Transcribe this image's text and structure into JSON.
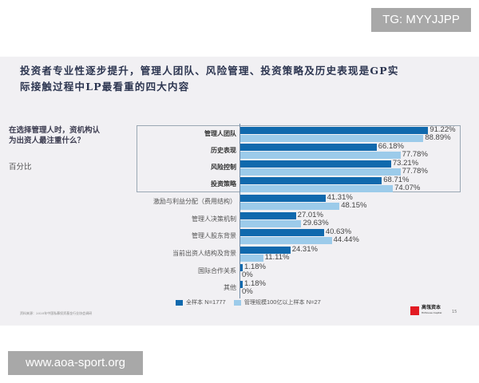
{
  "watermarks": {
    "top": "TG: MYYJJPP",
    "bottom": "www.aoa-sport.org"
  },
  "slide": {
    "title_line1": "投资者专业性逐步提升，管理人团队、风险管理、投资策略及历史表现是GP实",
    "title_line2": "际接触过程中LP最看重的四大内容",
    "question": "在选择管理人时，资机构认为出资人最注重什么？",
    "unit": "百分比",
    "source": "资料来源：2020年中国私募投资基金行业协会调研",
    "logo_name": "高瓴资本",
    "logo_sub": "Hillhouse Capital",
    "page_number": "15",
    "colors": {
      "dark_series": "#1069ad",
      "light_series": "#9ccbea",
      "logo_red": "#e21b23",
      "title": "#2c3550"
    }
  },
  "chart_data": {
    "type": "bar",
    "orientation": "horizontal",
    "title": "在选择管理人时，资机构认为出资人最注重什么？",
    "xlabel": "百分比",
    "ylabel": "",
    "xlim": [
      0,
      100
    ],
    "grid": false,
    "legend_position": "bottom",
    "categories": [
      "管理人团队",
      "历史表现",
      "风险控制",
      "投资策略",
      "激励与利益分配（费用结构）",
      "管理人决策机制",
      "管理人股东背景",
      "当前出资人结构及背景",
      "国际合作关系",
      "其他"
    ],
    "highlighted_categories": [
      "管理人团队",
      "历史表现",
      "风险控制",
      "投资策略"
    ],
    "series": [
      {
        "name": "全样本 N=1777",
        "values": [
          91.22,
          66.18,
          73.21,
          68.71,
          41.31,
          27.01,
          40.63,
          24.31,
          1.18,
          1.18
        ],
        "labels": [
          "91.22%",
          "66.18%",
          "73.21%",
          "68.71%",
          "41.31%",
          "27.01%",
          "40.63%",
          "24.31%",
          "1.18%",
          "1.18%"
        ]
      },
      {
        "name": "管理规模100亿以上样本 N=27",
        "values": [
          88.89,
          77.78,
          77.78,
          74.07,
          48.15,
          29.63,
          44.44,
          11.11,
          0,
          0
        ],
        "labels": [
          "88.89%",
          "77.78%",
          "77.78%",
          "74.07%",
          "48.15%",
          "29.63%",
          "44.44%",
          "11.11%",
          "0%",
          "0%"
        ]
      }
    ]
  },
  "legend": {
    "dark_label": "全样本",
    "dark_n": "N=1777",
    "light_label_pre": "管理规模",
    "light_num": "100",
    "light_label_post": "亿以上样本",
    "light_n": "N=27"
  }
}
